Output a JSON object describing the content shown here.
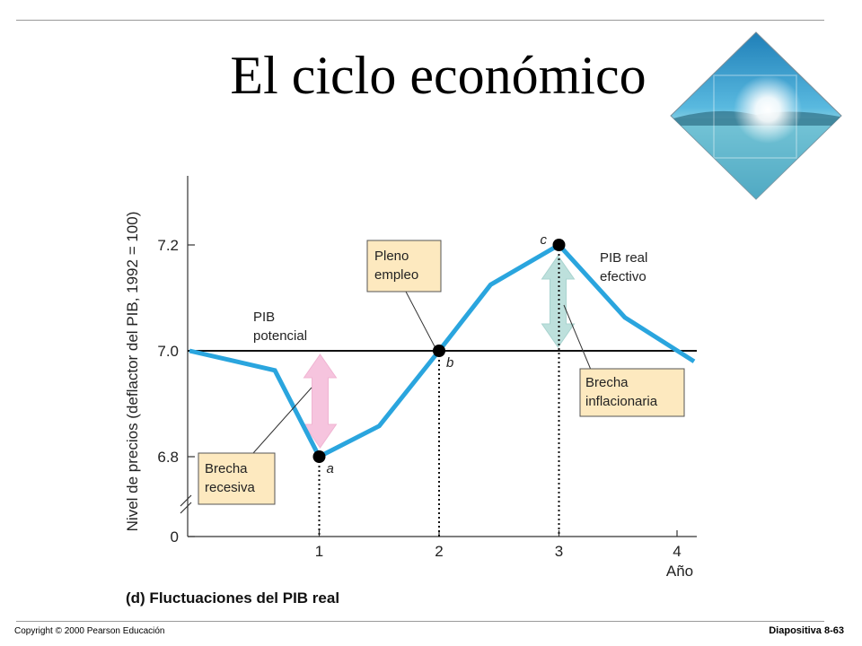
{
  "slide": {
    "title": "El ciclo económico",
    "footer_left": "Copyright © 2000 Pearson Educación",
    "footer_right": "Diapositiva  8-63"
  },
  "decoration": {
    "icon": "tropical-sunset-diamond-icon",
    "colors": {
      "sky": "#2f9fd0",
      "sea": "#6ec6d8",
      "sun": "#ffffff"
    }
  },
  "colors": {
    "actual_line": "#2aa5de",
    "potential_line": "#111111",
    "recession_arrow": "#f6c4de",
    "inflation_arrow": "#bde0dc",
    "callout_fill": "#fde9bf",
    "point": "#000000"
  },
  "chart_data": {
    "type": "line",
    "caption": "(d) Fluctuaciones del PIB real",
    "xlabel": "Año",
    "ylabel": "Nivel de precios (deflactor del PIB, 1992 = 100)",
    "x_ticks": [
      "1",
      "2",
      "3",
      "4"
    ],
    "y_ticks": [
      "0",
      "6.8",
      "7.0",
      "7.2"
    ],
    "ylim": [
      6.73,
      7.33
    ],
    "xlim": [
      0,
      4.15
    ],
    "axis_break": true,
    "grid": false,
    "series": [
      {
        "name": "PIB real efectivo",
        "x": [
          0,
          0.63,
          1,
          1.5,
          2,
          2.43,
          3,
          3.55,
          4.15
        ],
        "y": [
          7.0,
          6.963,
          6.8,
          6.858,
          7.0,
          7.125,
          7.2,
          7.063,
          6.98
        ]
      },
      {
        "name": "PIB potencial",
        "x": [
          0,
          4.15
        ],
        "y": [
          7.0,
          7.0
        ]
      }
    ],
    "points": [
      {
        "label": "a",
        "x": 1,
        "y": 6.8
      },
      {
        "label": "b",
        "x": 2,
        "y": 7.0
      },
      {
        "label": "c",
        "x": 3,
        "y": 7.2
      }
    ],
    "annotations": {
      "potential_label": [
        "PIB",
        "potencial"
      ],
      "actual_label": [
        "PIB real",
        "efectivo"
      ],
      "full_employment": [
        "Pleno",
        "empleo"
      ],
      "recession_gap": [
        "Brecha",
        "recesiva"
      ],
      "inflation_gap": [
        "Brecha",
        "inflacionaria"
      ]
    }
  }
}
